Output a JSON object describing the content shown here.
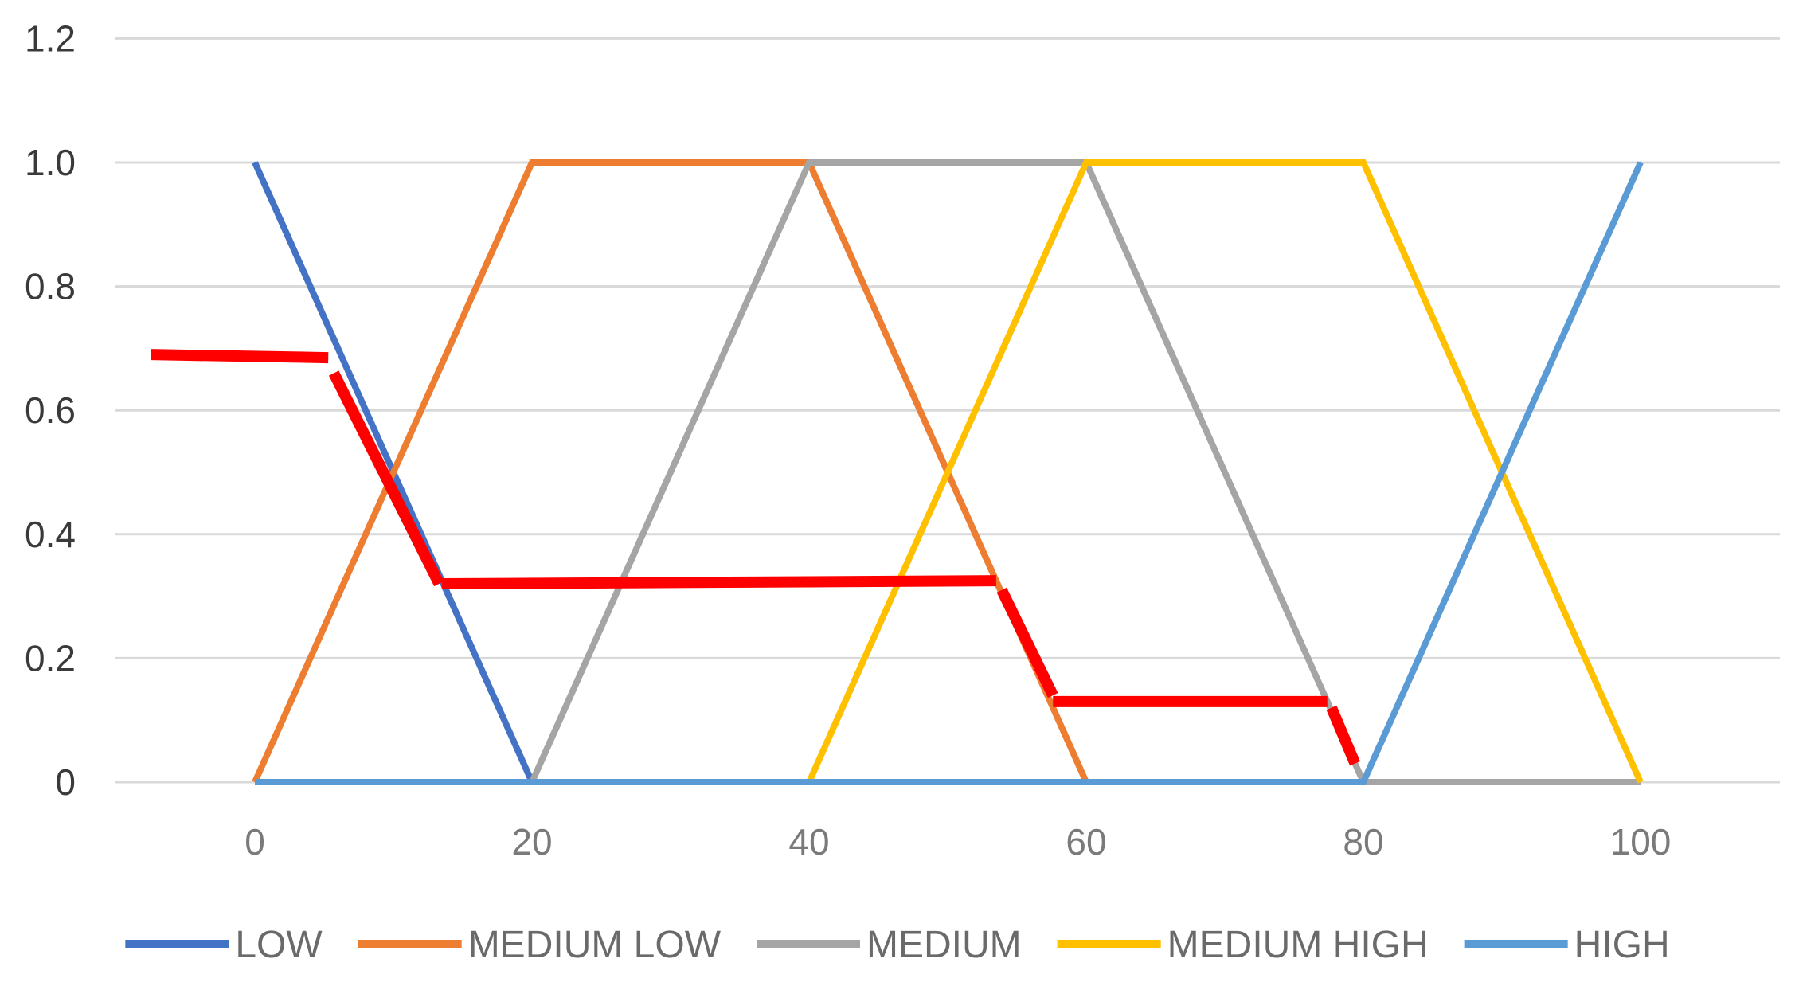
{
  "chart_data": {
    "type": "line",
    "title": "",
    "xlabel": "",
    "ylabel": "",
    "xlim": [
      -15,
      110
    ],
    "ylim": [
      0,
      1.2
    ],
    "x_ticks": [
      "0",
      "20",
      "40",
      "60",
      "80",
      "100"
    ],
    "y_ticks": [
      "0",
      "0.2",
      "0.4",
      "0.6",
      "0.8",
      "1.0",
      "1.2"
    ],
    "grid": "horizontal",
    "legend_position": "bottom",
    "series": [
      {
        "name": "LOW",
        "color": "#4472C4",
        "points": [
          [
            0,
            1
          ],
          [
            20,
            0
          ],
          [
            100,
            0
          ]
        ]
      },
      {
        "name": "MEDIUM LOW",
        "color": "#ED7D31",
        "points": [
          [
            0,
            0
          ],
          [
            20,
            1
          ],
          [
            40,
            1
          ],
          [
            60,
            0
          ]
        ]
      },
      {
        "name": "MEDIUM",
        "color": "#A5A5A5",
        "points": [
          [
            20,
            0
          ],
          [
            40,
            1
          ],
          [
            60,
            1
          ],
          [
            80,
            0
          ],
          [
            100,
            0
          ]
        ]
      },
      {
        "name": "MEDIUM HIGH",
        "color": "#FFC000",
        "points": [
          [
            40,
            0
          ],
          [
            60,
            1
          ],
          [
            80,
            1
          ],
          [
            100,
            0
          ]
        ]
      },
      {
        "name": "HIGH",
        "color": "#5B9BD5",
        "points": [
          [
            0,
            0
          ],
          [
            80,
            0
          ],
          [
            100,
            1
          ]
        ]
      }
    ],
    "overlay": {
      "color": "#FF0000",
      "segments": [
        [
          [
            -7.5,
            0.69
          ],
          [
            5.3,
            0.685
          ]
        ],
        [
          [
            5.7,
            0.66
          ],
          [
            13.3,
            0.32
          ]
        ],
        [
          [
            13.5,
            0.32
          ],
          [
            53.5,
            0.325
          ]
        ],
        [
          [
            53.9,
            0.31
          ],
          [
            57.6,
            0.14
          ]
        ],
        [
          [
            57.6,
            0.13
          ],
          [
            77.4,
            0.13
          ]
        ],
        [
          [
            77.7,
            0.12
          ],
          [
            79.4,
            0.03
          ]
        ]
      ]
    }
  }
}
